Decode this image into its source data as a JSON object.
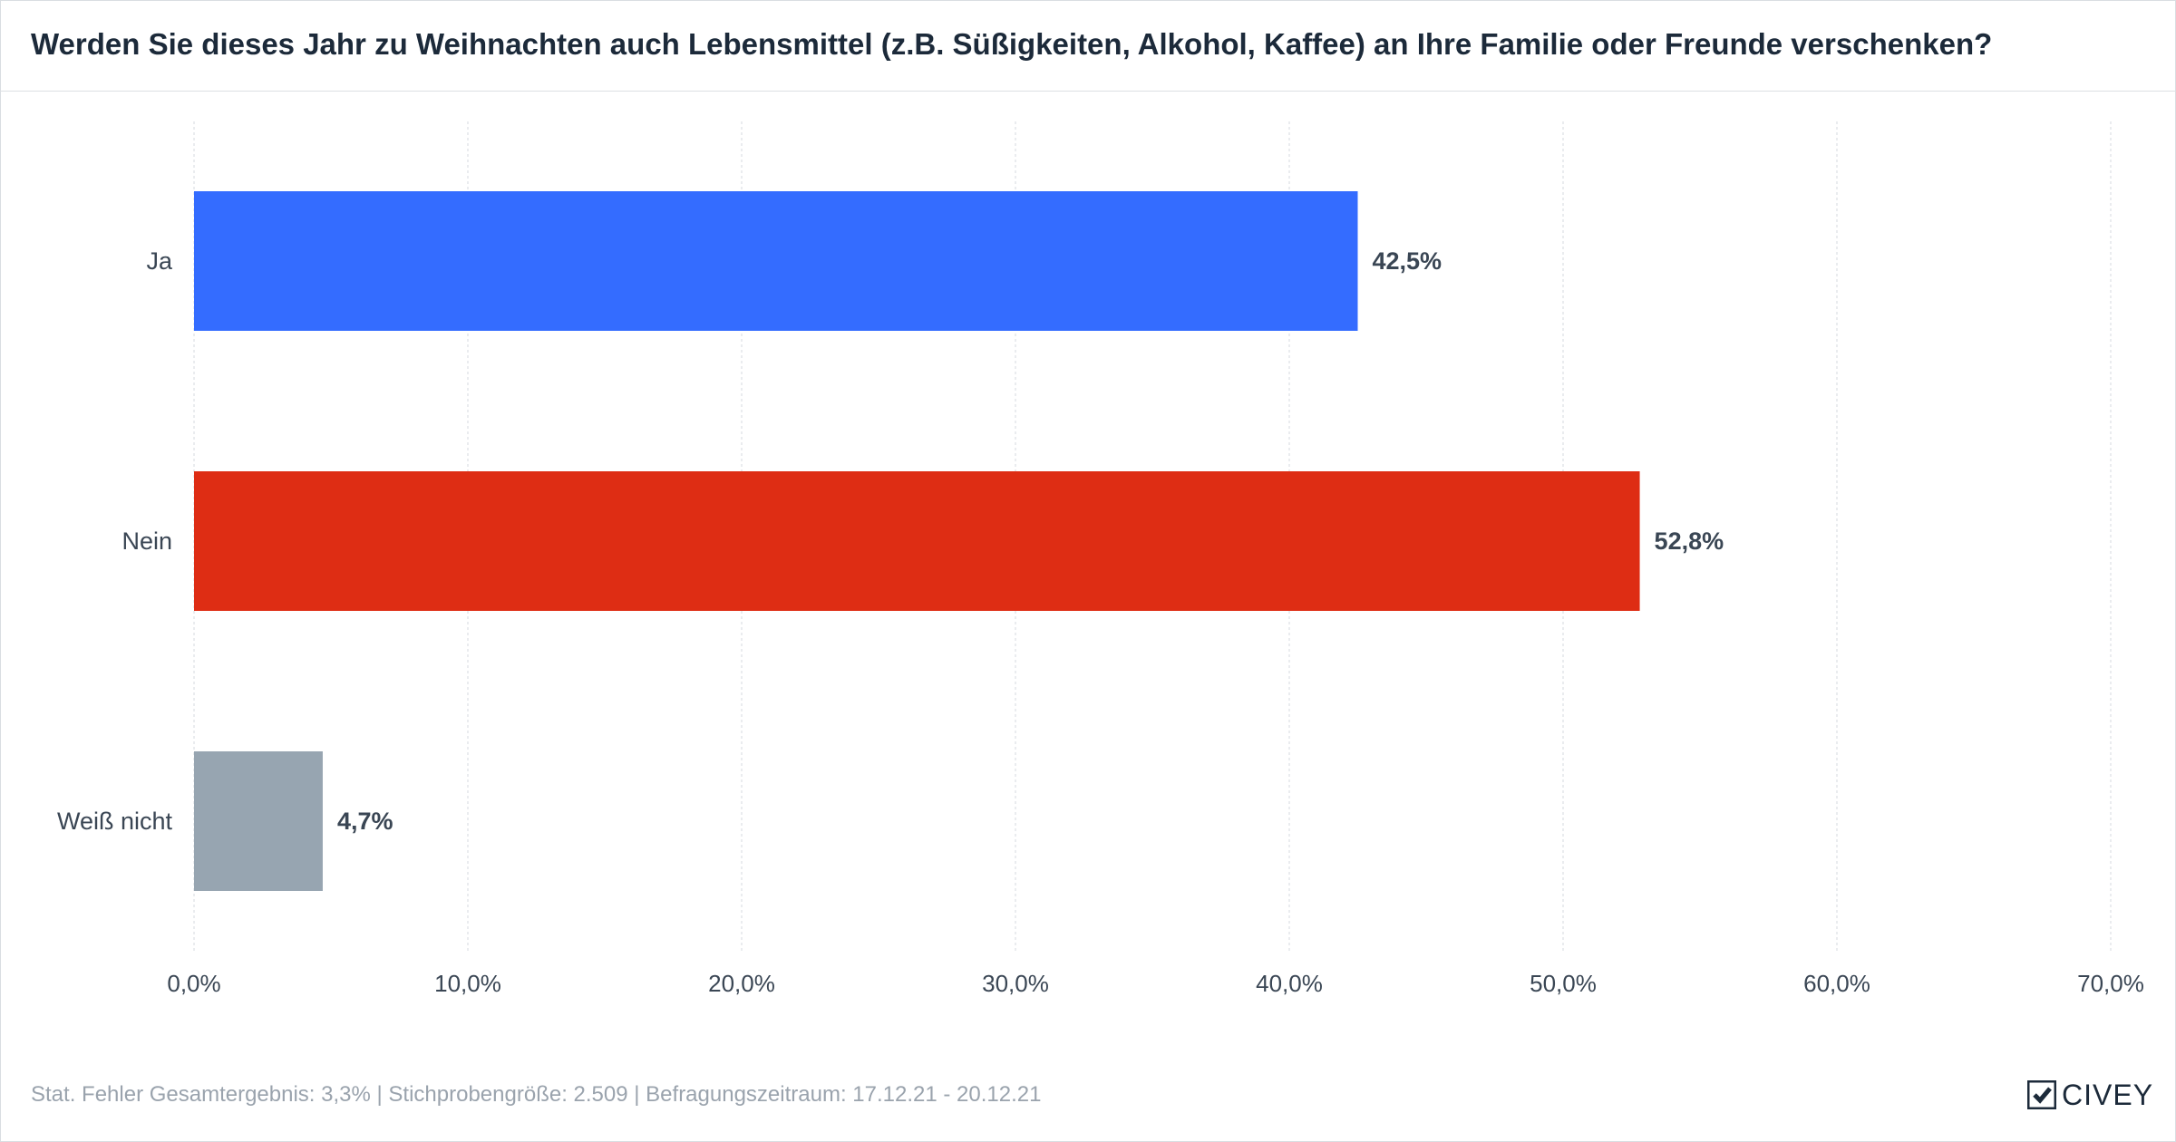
{
  "chart_data": {
    "type": "bar",
    "orientation": "horizontal",
    "title": "Werden Sie dieses Jahr zu Weihnachten auch Lebensmittel (z.B. Süßigkeiten, Alkohol, Kaffee) an Ihre Familie oder Freunde verschenken?",
    "categories": [
      "Ja",
      "Nein",
      "Weiß nicht"
    ],
    "values": [
      42.5,
      52.8,
      4.7
    ],
    "value_labels": [
      "42,5%",
      "52,8%",
      "4,7%"
    ],
    "colors": [
      "#346cff",
      "#de2d14",
      "#97a5b1"
    ],
    "xlim": [
      0,
      70
    ],
    "x_ticks": [
      0,
      10,
      20,
      30,
      40,
      50,
      60,
      70
    ],
    "x_tick_labels": [
      "0,0%",
      "10,0%",
      "20,0%",
      "30,0%",
      "40,0%",
      "50,0%",
      "60,0%",
      "70,0%"
    ],
    "grid": true,
    "xlabel": "",
    "ylabel": ""
  },
  "footer": {
    "note": "Stat. Fehler Gesamtergebnis: 3,3% | Stichprobengröße: 2.509 | Befragungszeitraum: 17.12.21 - 20.12.21",
    "logo_text": "CIVEY"
  },
  "colors": {
    "title_text": "#1c2a3a",
    "axis_text": "#3a4654",
    "grid": "#e3e6ea",
    "footer_text": "#9aa3ad"
  }
}
